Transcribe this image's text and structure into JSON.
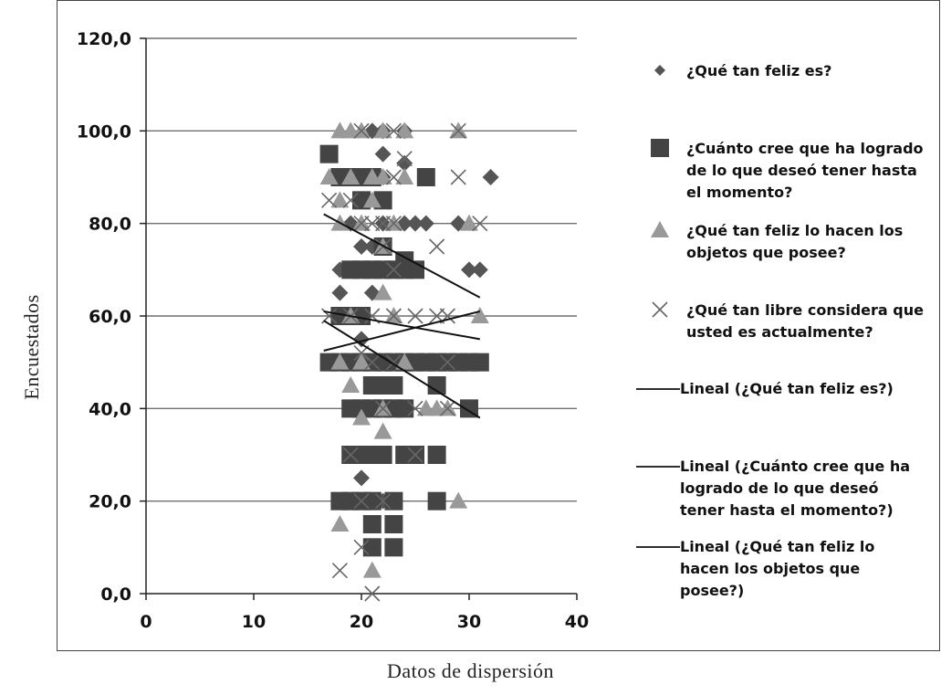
{
  "chart_data": {
    "type": "scatter",
    "title": "",
    "xlabel": "Datos de dispersión",
    "ylabel": "Encuestados",
    "xlim": [
      0,
      40
    ],
    "ylim": [
      0,
      120
    ],
    "x_ticks": [
      "0",
      "10",
      "20",
      "30",
      "40"
    ],
    "y_ticks": [
      "0,0",
      "20,0",
      "40,0",
      "60,0",
      "80,0",
      "100,0",
      "120,0"
    ],
    "grid": "horizontal",
    "legend_position": "right",
    "colors": {
      "happy": "#555555",
      "achieved": "#444444",
      "objects": "#999999",
      "free": "#666666",
      "line": "#111111"
    },
    "series": [
      {
        "name": "¿Qué tan feliz es?",
        "marker": "diamond",
        "points": [
          [
            21,
            100
          ],
          [
            22,
            100
          ],
          [
            24,
            100
          ],
          [
            22,
            95
          ],
          [
            24,
            93
          ],
          [
            32,
            90
          ],
          [
            18,
            70
          ],
          [
            19,
            70
          ],
          [
            21,
            70
          ],
          [
            23,
            70
          ],
          [
            30,
            70
          ],
          [
            31,
            70
          ],
          [
            18,
            65
          ],
          [
            21,
            65
          ],
          [
            20,
            75
          ],
          [
            21,
            75
          ],
          [
            22,
            75
          ],
          [
            19,
            80
          ],
          [
            22,
            80
          ],
          [
            24,
            80
          ],
          [
            26,
            80
          ],
          [
            29,
            80
          ],
          [
            20,
            55
          ],
          [
            20,
            25
          ],
          [
            21,
            15
          ],
          [
            22,
            20
          ],
          [
            22,
            90
          ],
          [
            25,
            80
          ]
        ]
      },
      {
        "name": "¿Cuánto cree que ha logrado de lo que deseó tener hasta el momento?",
        "marker": "square",
        "points": [
          [
            17,
            95
          ],
          [
            18,
            90
          ],
          [
            19,
            90
          ],
          [
            20,
            90
          ],
          [
            21,
            90
          ],
          [
            26,
            90
          ],
          [
            20,
            85
          ],
          [
            22,
            85
          ],
          [
            22,
            75
          ],
          [
            24,
            72
          ],
          [
            19,
            70
          ],
          [
            20,
            70
          ],
          [
            21,
            70
          ],
          [
            22,
            70
          ],
          [
            23,
            70
          ],
          [
            24,
            70
          ],
          [
            25,
            70
          ],
          [
            18,
            60
          ],
          [
            19,
            60
          ],
          [
            20,
            60
          ],
          [
            17,
            50
          ],
          [
            18,
            50
          ],
          [
            19,
            50
          ],
          [
            20,
            50
          ],
          [
            21,
            50
          ],
          [
            22,
            50
          ],
          [
            23,
            50
          ],
          [
            24,
            50
          ],
          [
            25,
            50
          ],
          [
            26,
            50
          ],
          [
            27,
            50
          ],
          [
            28,
            50
          ],
          [
            29,
            50
          ],
          [
            30,
            50
          ],
          [
            31,
            50
          ],
          [
            21,
            45
          ],
          [
            22,
            45
          ],
          [
            23,
            45
          ],
          [
            27,
            45
          ],
          [
            19,
            40
          ],
          [
            20,
            40
          ],
          [
            21,
            40
          ],
          [
            22,
            40
          ],
          [
            23,
            40
          ],
          [
            24,
            40
          ],
          [
            30,
            40
          ],
          [
            19,
            30
          ],
          [
            20,
            30
          ],
          [
            21,
            30
          ],
          [
            22,
            30
          ],
          [
            24,
            30
          ],
          [
            25,
            30
          ],
          [
            27,
            30
          ],
          [
            18,
            20
          ],
          [
            19,
            20
          ],
          [
            20,
            20
          ],
          [
            21,
            20
          ],
          [
            23,
            20
          ],
          [
            27,
            20
          ],
          [
            21,
            15
          ],
          [
            23,
            15
          ],
          [
            21,
            10
          ],
          [
            23,
            10
          ]
        ]
      },
      {
        "name": "¿Qué tan feliz lo hacen los objetos que posee?",
        "marker": "triangle",
        "points": [
          [
            18,
            100
          ],
          [
            19,
            100
          ],
          [
            20,
            100
          ],
          [
            22,
            100
          ],
          [
            24,
            100
          ],
          [
            29,
            100
          ],
          [
            17,
            90
          ],
          [
            19,
            90
          ],
          [
            21,
            90
          ],
          [
            22,
            90
          ],
          [
            24,
            90
          ],
          [
            18,
            85
          ],
          [
            21,
            85
          ],
          [
            18,
            80
          ],
          [
            20,
            80
          ],
          [
            23,
            80
          ],
          [
            30,
            80
          ],
          [
            22,
            75
          ],
          [
            22,
            65
          ],
          [
            19,
            60
          ],
          [
            23,
            60
          ],
          [
            31,
            60
          ],
          [
            18,
            50
          ],
          [
            20,
            50
          ],
          [
            24,
            50
          ],
          [
            19,
            45
          ],
          [
            22,
            40
          ],
          [
            26,
            40
          ],
          [
            27,
            40
          ],
          [
            28,
            40
          ],
          [
            20,
            38
          ],
          [
            22,
            35
          ],
          [
            29,
            20
          ],
          [
            18,
            15
          ],
          [
            21,
            5
          ]
        ]
      },
      {
        "name": "¿Qué tan libre considera que usted es actualmente?",
        "marker": "x",
        "points": [
          [
            20,
            100
          ],
          [
            23,
            100
          ],
          [
            29,
            100
          ],
          [
            24,
            94
          ],
          [
            23,
            90
          ],
          [
            29,
            90
          ],
          [
            17,
            85
          ],
          [
            19,
            85
          ],
          [
            20,
            80
          ],
          [
            21,
            80
          ],
          [
            22,
            80
          ],
          [
            23,
            80
          ],
          [
            31,
            80
          ],
          [
            22,
            75
          ],
          [
            27,
            75
          ],
          [
            23,
            70
          ],
          [
            17,
            60
          ],
          [
            19,
            60
          ],
          [
            21,
            60
          ],
          [
            23,
            60
          ],
          [
            25,
            60
          ],
          [
            27,
            60
          ],
          [
            28,
            60
          ],
          [
            20,
            52
          ],
          [
            21,
            50
          ],
          [
            23,
            50
          ],
          [
            28,
            50
          ],
          [
            22,
            40
          ],
          [
            25,
            40
          ],
          [
            28,
            40
          ],
          [
            19,
            30
          ],
          [
            25,
            30
          ],
          [
            20,
            20
          ],
          [
            22,
            20
          ],
          [
            20,
            10
          ],
          [
            18,
            5
          ],
          [
            21,
            0
          ]
        ]
      }
    ],
    "trendlines": [
      {
        "name": "Lineal (¿Qué tan feliz es?)",
        "x": [
          16.5,
          31
        ],
        "y": [
          59,
          38
        ]
      },
      {
        "name": "Lineal (¿Cuánto cree que ha logrado de lo que deseó tener hasta el momento?)",
        "x": [
          16.5,
          31
        ],
        "y": [
          82,
          64
        ]
      },
      {
        "name": "Lineal (¿Qué tan feliz lo hacen los objetos que posee?)",
        "x": [
          16.5,
          31
        ],
        "y": [
          61,
          55
        ]
      },
      {
        "name": "",
        "x": [
          16.5,
          31
        ],
        "y": [
          52.5,
          61
        ]
      }
    ],
    "legend": [
      {
        "marker": "diamond",
        "label": "¿Qué tan feliz es?"
      },
      {
        "marker": "square",
        "label": "¿Cuánto cree que ha logrado de lo que deseó tener hasta el momento?"
      },
      {
        "marker": "triangle",
        "label": "¿Qué tan feliz lo hacen los objetos que posee?"
      },
      {
        "marker": "x",
        "label": "¿Qué tan libre considera que usted es actualmente?"
      },
      {
        "marker": "line",
        "label": "Lineal (¿Qué tan feliz es?)"
      },
      {
        "marker": "line",
        "label": "Lineal (¿Cuánto cree que ha logrado de lo que deseó tener hasta el momento?)"
      },
      {
        "marker": "line",
        "label": "Lineal (¿Qué tan feliz lo hacen los objetos que posee?)"
      }
    ],
    "legend_lines": [
      [
        "¿Qué tan feliz es?"
      ],
      [
        "¿Cuánto cree que ha logrado",
        "de lo que deseó tener hasta",
        "el momento?"
      ],
      [
        "¿Qué tan feliz lo hacen los",
        "objetos que posee?"
      ],
      [
        "¿Qué tan libre considera que",
        "usted es actualmente?"
      ],
      [
        "Lineal (¿Qué tan feliz es?)"
      ],
      [
        "Lineal (¿Cuánto cree que ha",
        "logrado de lo que deseó",
        "tener hasta el momento?)"
      ],
      [
        "Lineal (¿Qué tan feliz lo",
        "hacen los objetos que",
        "posee?)"
      ]
    ]
  }
}
